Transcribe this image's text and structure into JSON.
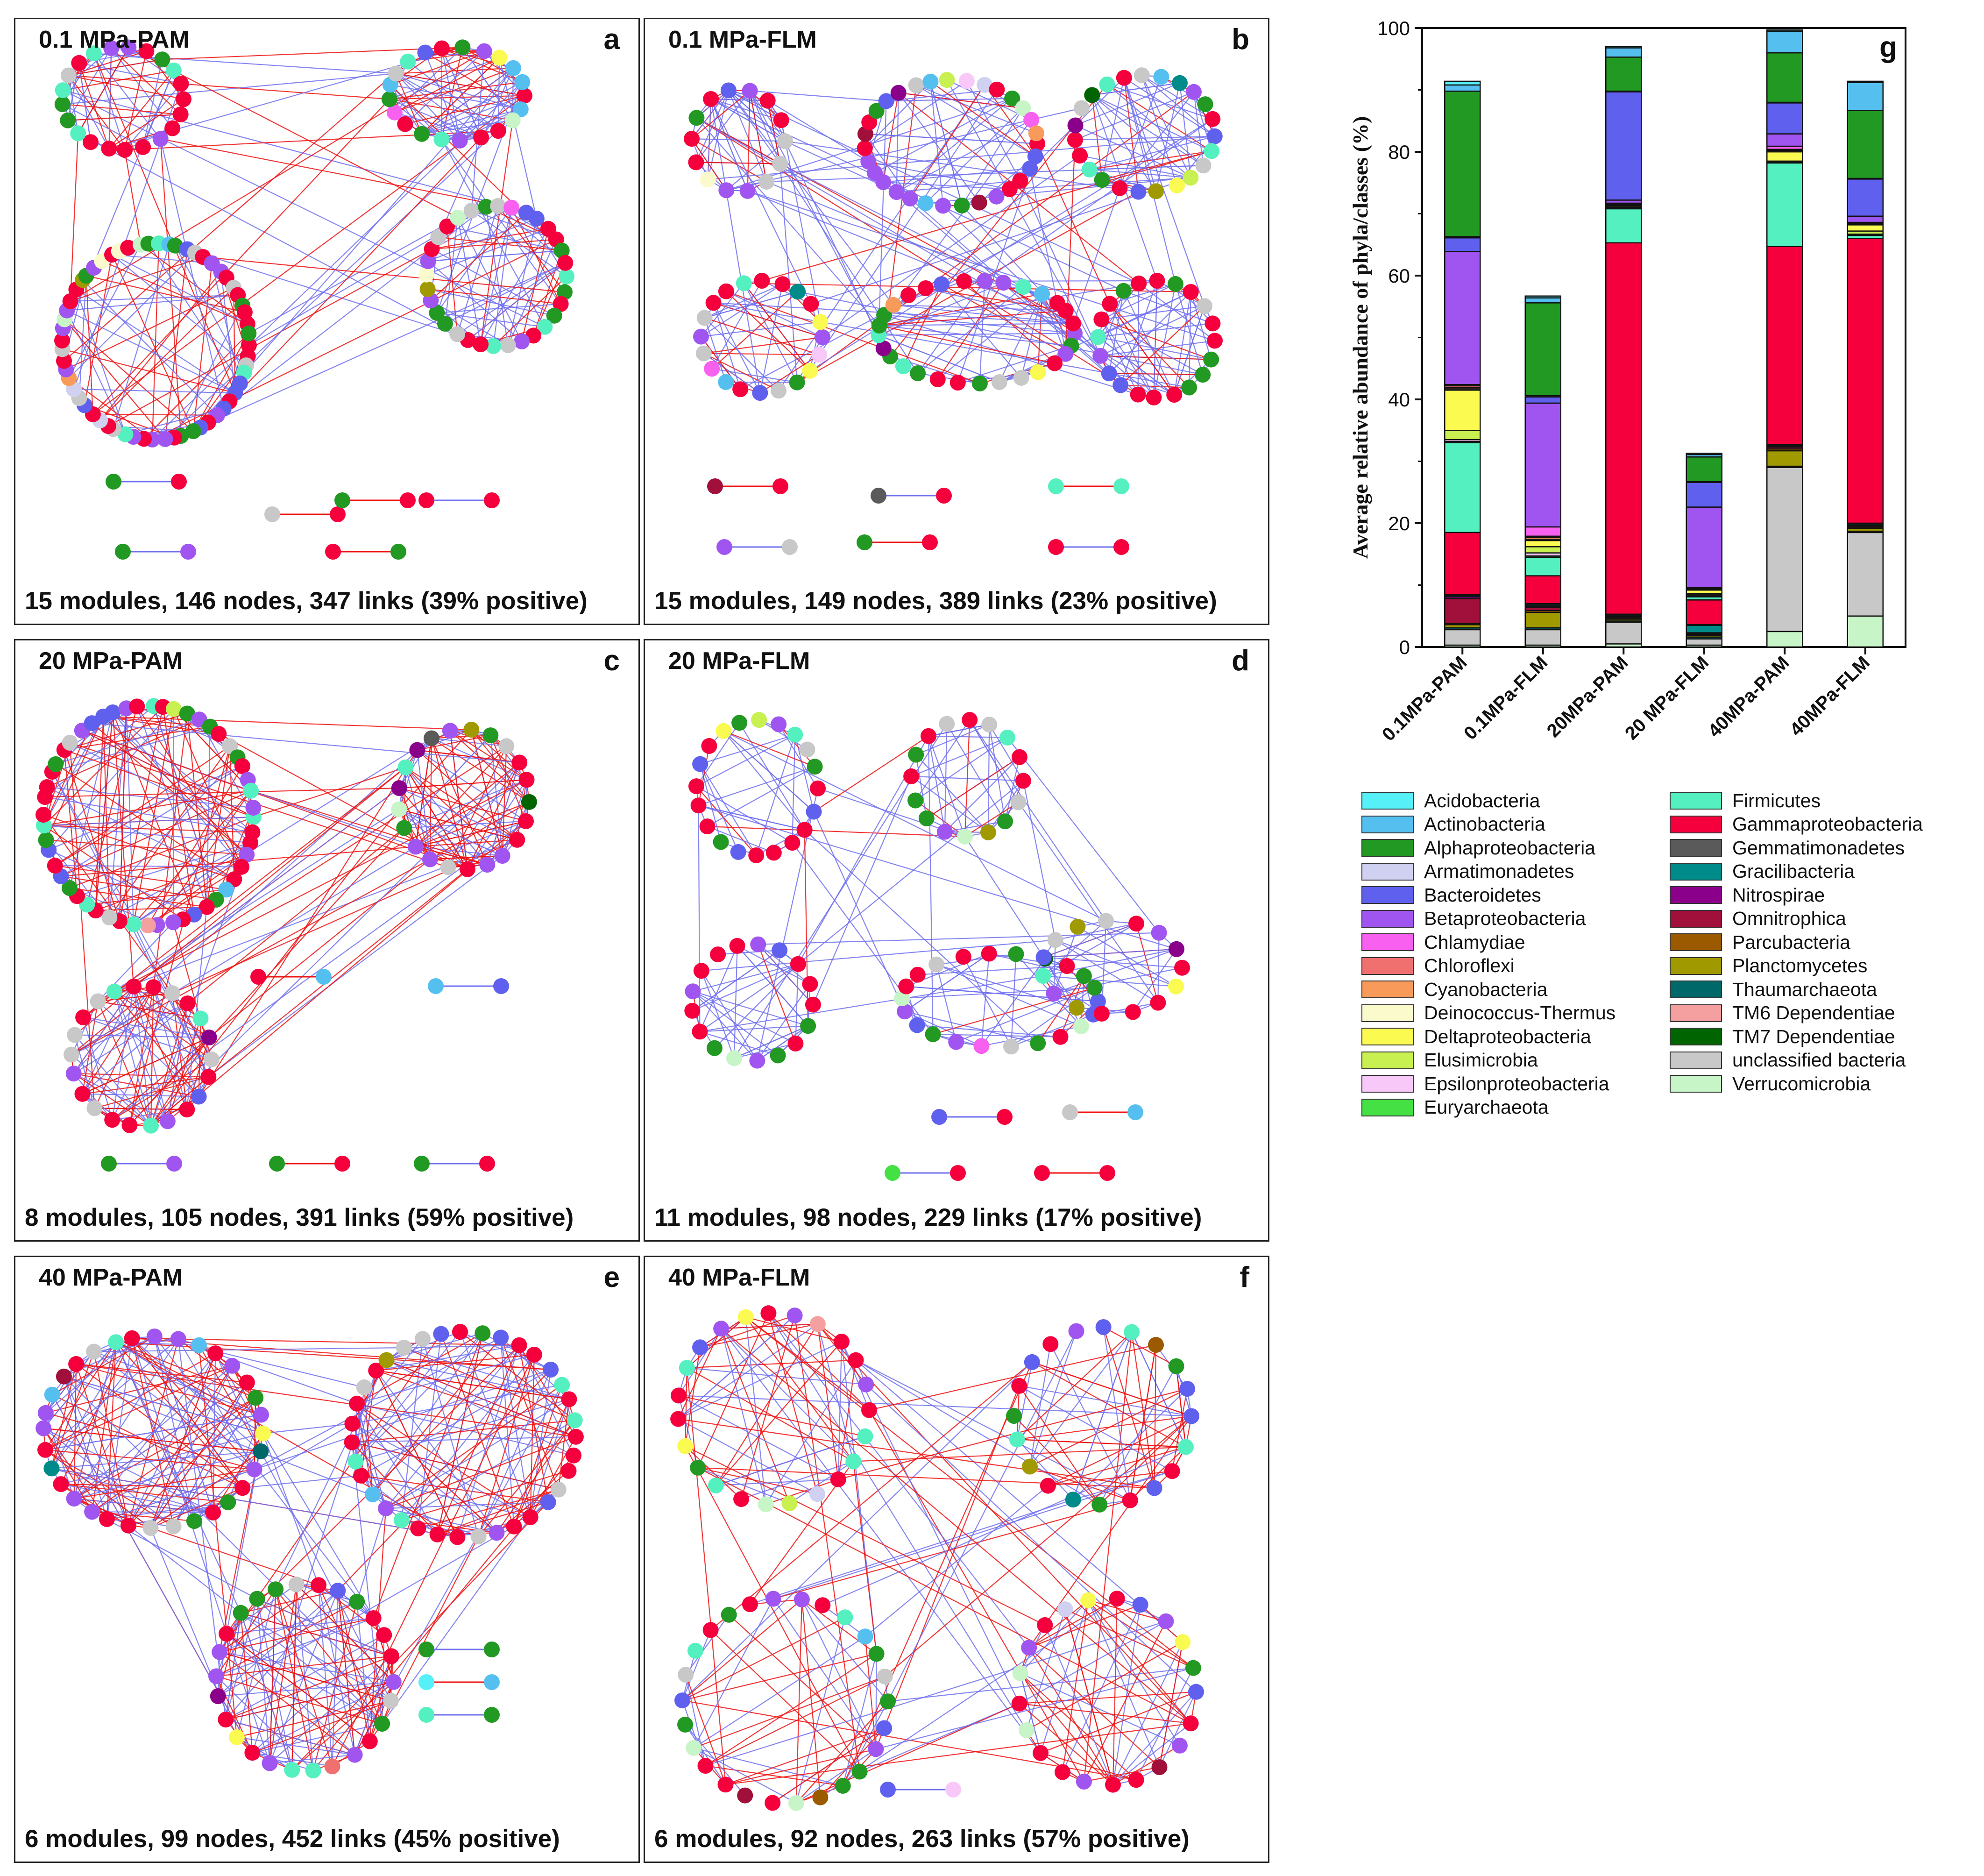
{
  "panels": [
    {
      "id": "a",
      "title": "0.1 MPa-PAM",
      "summary": "15 modules, 146 nodes, 347 links (39% positive)",
      "seed": 11,
      "modules": 15,
      "nodes": 146,
      "links": 347,
      "positive_pct": 39
    },
    {
      "id": "b",
      "title": "0.1 MPa-FLM",
      "summary": "15 modules, 149 nodes, 389 links (23% positive)",
      "seed": 23,
      "modules": 15,
      "nodes": 149,
      "links": 389,
      "positive_pct": 23
    },
    {
      "id": "c",
      "title": "20 MPa-PAM",
      "summary": "8 modules, 105 nodes, 391 links (59% positive)",
      "seed": 37,
      "modules": 8,
      "nodes": 105,
      "links": 391,
      "positive_pct": 59
    },
    {
      "id": "d",
      "title": "20 MPa-FLM",
      "summary": "11 modules, 98 nodes, 229 links (17% positive)",
      "seed": 41,
      "modules": 11,
      "nodes": 98,
      "links": 229,
      "positive_pct": 17
    },
    {
      "id": "e",
      "title": "40 MPa-PAM",
      "summary": "6 modules, 99 nodes, 452 links (45% positive)",
      "seed": 53,
      "modules": 6,
      "nodes": 99,
      "links": 452,
      "positive_pct": 45
    },
    {
      "id": "f",
      "title": "40 MPa-FLM",
      "summary": "6 modules, 92 nodes, 263 links (57% positive)",
      "seed": 67,
      "modules": 6,
      "nodes": 92,
      "links": 263,
      "positive_pct": 57
    }
  ],
  "chart_data": {
    "type": "bar",
    "stacked": true,
    "panel_letter": "g",
    "ylabel": "Average relative abundance of phyla/classes (%)",
    "xlabel": "",
    "ylim": [
      0,
      100
    ],
    "yticks": [
      0,
      20,
      40,
      60,
      80,
      100
    ],
    "categories": [
      "0.1MPa-PAM",
      "0.1MPa-FLM",
      "20MPa-PAM",
      "20 MPa-FLM",
      "40MPa-PAM",
      "40MPa-FLM"
    ],
    "series": [
      {
        "name": "Verrucomicrobia",
        "color": "#c8f5c8",
        "values": [
          0.3,
          0.3,
          0.5,
          0.3,
          2.5,
          5.0
        ]
      },
      {
        "name": "unclassified bacteria",
        "color": "#c8c8c8",
        "values": [
          2.5,
          2.5,
          3.5,
          1.0,
          26.5,
          13.5
        ]
      },
      {
        "name": "TM7 Dependentiae",
        "color": "#006400",
        "values": [
          0,
          0,
          0,
          0,
          0,
          0
        ]
      },
      {
        "name": "TM6 Dependentiae",
        "color": "#f4a0a0",
        "values": [
          0,
          0,
          0,
          0,
          0,
          0
        ]
      },
      {
        "name": "Thaumarchaeota",
        "color": "#006868",
        "values": [
          0.3,
          0.3,
          0.2,
          0.3,
          0.2,
          0.2
        ]
      },
      {
        "name": "Planctomycetes",
        "color": "#a09a00",
        "values": [
          0.5,
          2.5,
          0.3,
          0.3,
          2.5,
          0.5
        ]
      },
      {
        "name": "Parcubacteria",
        "color": "#9b5a00",
        "values": [
          0.2,
          0.3,
          0.2,
          0.1,
          0.3,
          0.2
        ]
      },
      {
        "name": "Omnitrophica",
        "color": "#a0103a",
        "values": [
          4.0,
          0.5,
          0.2,
          0.2,
          0.3,
          0.2
        ]
      },
      {
        "name": "Nitrospirae",
        "color": "#8b008b",
        "values": [
          0.3,
          0.2,
          0.1,
          0.1,
          0.1,
          0.1
        ]
      },
      {
        "name": "Gracilibacteria",
        "color": "#008b8b",
        "values": [
          0.2,
          0.2,
          0.2,
          1.2,
          0.2,
          0.2
        ]
      },
      {
        "name": "Gemmatimonadetes",
        "color": "#5a5a5a",
        "values": [
          0.2,
          0.2,
          0.1,
          0.1,
          0.1,
          0.1
        ]
      },
      {
        "name": "Gammaproteobacteria",
        "color": "#f5003c",
        "values": [
          10.0,
          4.5,
          60.0,
          4.0,
          32.0,
          46.0
        ]
      },
      {
        "name": "Firmicutes",
        "color": "#55f0c0",
        "values": [
          14.5,
          3.0,
          5.5,
          0.5,
          13.5,
          0.5
        ]
      },
      {
        "name": "Euryarchaeota",
        "color": "#44e044",
        "values": [
          0.2,
          0.2,
          0.1,
          0.1,
          0.1,
          0.1
        ]
      },
      {
        "name": "Epsilonproteobacteria",
        "color": "#f8c8f8",
        "values": [
          0.3,
          0.5,
          0.1,
          0.2,
          0.1,
          0.1
        ]
      },
      {
        "name": "Elusimicrobia",
        "color": "#c8f050",
        "values": [
          1.5,
          1.0,
          0.1,
          0.2,
          0.1,
          0.5
        ]
      },
      {
        "name": "Deltaproteobacteria",
        "color": "#fafa50",
        "values": [
          6.5,
          1.0,
          0.2,
          0.6,
          1.5,
          1.0
        ]
      },
      {
        "name": "Deinococcus-Thermus",
        "color": "#fafacc",
        "values": [
          0.2,
          0.2,
          0.1,
          0.1,
          0.2,
          0.1
        ]
      },
      {
        "name": "Cyanobacteria",
        "color": "#f89a5a",
        "values": [
          0.2,
          0.3,
          0.1,
          0.1,
          0.1,
          0.1
        ]
      },
      {
        "name": "Chloroflexi",
        "color": "#f07070",
        "values": [
          0.3,
          0.2,
          0.1,
          0.1,
          0.1,
          0.1
        ]
      },
      {
        "name": "Chlamydiae",
        "color": "#f860f0",
        "values": [
          0.2,
          1.5,
          0.1,
          0.1,
          0.5,
          0.1
        ]
      },
      {
        "name": "Betaproteobacteria",
        "color": "#a055f0",
        "values": [
          21.5,
          20.0,
          0.5,
          13.0,
          2.0,
          1.0
        ]
      },
      {
        "name": "Bacteroidetes",
        "color": "#6060ef",
        "values": [
          2.2,
          1.0,
          17.5,
          4.0,
          5.0,
          6.0
        ]
      },
      {
        "name": "Armatimonadetes",
        "color": "#d0d0f0",
        "values": [
          0.2,
          0.2,
          0.1,
          0.1,
          0.1,
          0.1
        ]
      },
      {
        "name": "Alphaproteobacteria",
        "color": "#229922",
        "values": [
          23.5,
          15.0,
          5.5,
          4.0,
          8.0,
          11.0
        ]
      },
      {
        "name": "Actinobacteria",
        "color": "#55c0f0",
        "values": [
          1.0,
          0.8,
          1.5,
          0.4,
          3.5,
          4.5
        ]
      },
      {
        "name": "Acidobacteria",
        "color": "#55f0f8",
        "values": [
          0.6,
          0.3,
          0.2,
          0.2,
          0.2,
          0.2
        ]
      }
    ],
    "legend": [
      [
        "Acidobacteria",
        "Actinobacteria",
        "Alphaproteobacteria",
        "Armatimonadetes",
        "Bacteroidetes",
        "Betaproteobacteria",
        "Chlamydiae",
        "Chloroflexi",
        "Cyanobacteria",
        "Deinococcus-Thermus",
        "Deltaproteobacteria",
        "Elusimicrobia",
        "Epsilonproteobacteria",
        "Euryarchaeota"
      ],
      [
        "Firmicutes",
        "Gammaproteobacteria",
        "Gemmatimonadetes",
        "Gracilibacteria",
        "Nitrospirae",
        "Omnitrophica",
        "Parcubacteria",
        "Planctomycetes",
        "Thaumarchaeota",
        "TM6 Dependentiae",
        "TM7 Dependentiae",
        "unclassified bacteria",
        "Verrucomicrobia"
      ]
    ],
    "legend_placement": "bottom"
  },
  "colors": {
    "positive_link": "#f01010",
    "negative_link": "#7070f0",
    "axis": "#111111"
  }
}
